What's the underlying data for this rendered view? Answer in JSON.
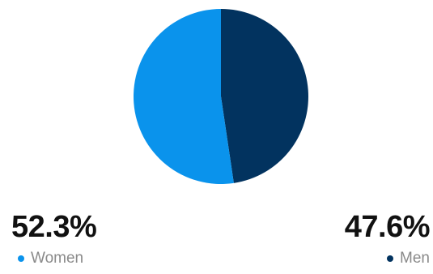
{
  "chart_data": {
    "type": "pie",
    "categories": [
      "Women",
      "Men"
    ],
    "values": [
      52.3,
      47.6
    ],
    "value_labels": [
      "52.3%",
      "47.6%"
    ],
    "colors": [
      "#0a93ec",
      "#02335f"
    ],
    "title": "",
    "legend_position": "bottom"
  }
}
